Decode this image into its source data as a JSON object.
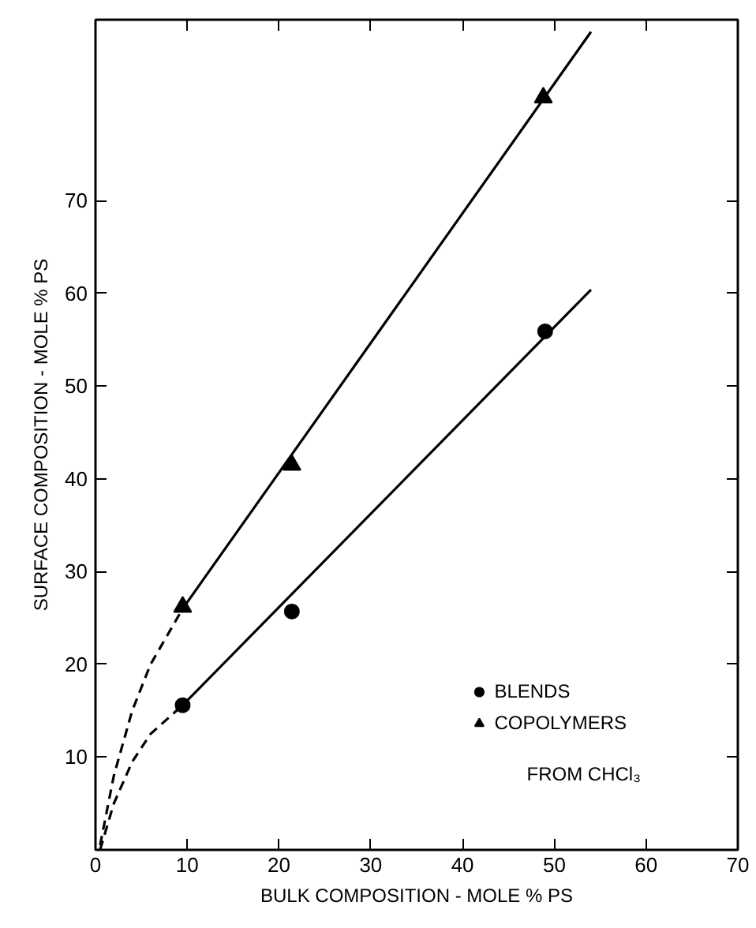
{
  "chart_data": {
    "type": "scatter",
    "xlabel": "BULK COMPOSITION - MOLE % PS",
    "ylabel": "SURFACE COMPOSITION - MOLE % PS",
    "xlim": [
      0,
      70
    ],
    "ylim": [
      0,
      89.5
    ],
    "xticks": [
      0,
      10,
      20,
      30,
      40,
      50,
      60,
      70
    ],
    "yticks": [
      10,
      20,
      30,
      40,
      50,
      60,
      70
    ],
    "grid": false,
    "legend": "bottom right",
    "annotations": [
      "FROM CHCl₃"
    ],
    "series": [
      {
        "name": "BLENDS",
        "marker": "circle",
        "color": "#000000",
        "x": [
          9.5,
          21.4,
          49
        ],
        "values": [
          15.6,
          25.7,
          55.9
        ]
      },
      {
        "name": "COPOLYMERS",
        "marker": "triangle",
        "color": "#000000",
        "x": [
          9.5,
          21.4,
          48.8
        ],
        "values": [
          26.2,
          41.5,
          81.1
        ]
      },
      {
        "type": "line",
        "line_style": "solid",
        "color": "#000000",
        "x": [
          9.5,
          54
        ],
        "values": [
          15.6,
          60.4
        ]
      },
      {
        "type": "line",
        "line_style": "solid",
        "color": "#000000",
        "x": [
          9.5,
          54
        ],
        "values": [
          26,
          88.2
        ]
      },
      {
        "type": "line",
        "line_style": "dashed",
        "color": "#000000",
        "x": [
          0.5,
          2,
          4,
          6,
          9.5
        ],
        "values": [
          0,
          5,
          9.5,
          12.5,
          15.6
        ]
      },
      {
        "type": "line",
        "line_style": "dashed",
        "color": "#000000",
        "x": [
          0.5,
          2,
          4,
          6,
          9.5
        ],
        "values": [
          0.5,
          8,
          15,
          20,
          26
        ]
      }
    ]
  }
}
